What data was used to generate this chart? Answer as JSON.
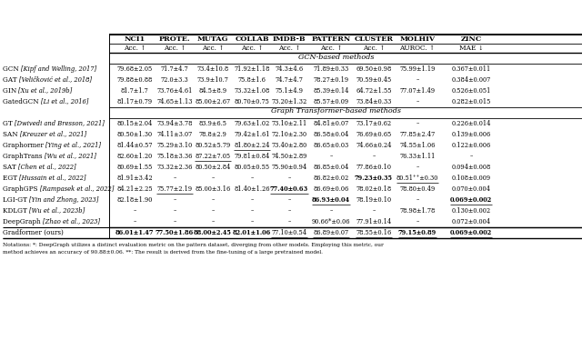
{
  "col_headers_line1": [
    "NCI1",
    "PROTE.",
    "MUTAG",
    "COLLAB",
    "IMDB-B",
    "PATTERN",
    "CLUSTER",
    "MOLHIV",
    "ZINC"
  ],
  "col_headers_line2": [
    "Acc. ↑",
    "Acc. ↑",
    "Acc. ↑",
    "Acc. ↑",
    "Acc. ↑",
    "Acc. ↑",
    "Acc. ↑",
    "AUROC. ↑",
    "MAE ↓"
  ],
  "gcn_section_title": "GCN-based methods",
  "gt_section_title": "Graph Transformer-based methods",
  "gcn_rows": [
    {
      "method_plain": "GCN",
      "method_ref": "[Kipf and Welling, 2017]",
      "values": [
        "79.68±2.05",
        "71.7±4.7",
        "73.4±10.8",
        "71.92±1.18",
        "74.3±4.6",
        "71.89±0.33",
        "69.50±0.98",
        "75.99±1.19",
        "0.367±0.011"
      ],
      "bold": [
        false,
        false,
        false,
        false,
        false,
        false,
        false,
        false,
        false
      ],
      "underline": [
        false,
        false,
        false,
        false,
        false,
        false,
        false,
        false,
        false
      ]
    },
    {
      "method_plain": "GAT",
      "method_ref": "[Veličković et al., 2018]",
      "values": [
        "79.88±0.88",
        "72.0±3.3",
        "73.9±10.7",
        "75.8±1.6",
        "74.7±4.7",
        "78.27±0.19",
        "70.59±0.45",
        "–",
        "0.384±0.007"
      ],
      "bold": [
        false,
        false,
        false,
        false,
        false,
        false,
        false,
        false,
        false
      ],
      "underline": [
        false,
        false,
        false,
        false,
        false,
        false,
        false,
        false,
        false
      ]
    },
    {
      "method_plain": "GIN",
      "method_ref": "[Xu et al., 2019b]",
      "values": [
        "81.7±1.7",
        "73.76±4.61",
        "84.5±8.9",
        "73.32±1.08",
        "75.1±4.9",
        "85.39±0.14",
        "64.72±1.55",
        "77.07±1.49",
        "0.526±0.051"
      ],
      "bold": [
        false,
        false,
        false,
        false,
        false,
        false,
        false,
        false,
        false
      ],
      "underline": [
        false,
        false,
        false,
        false,
        false,
        false,
        false,
        false,
        false
      ]
    },
    {
      "method_plain": "GatedGCN",
      "method_ref": "[Li et al., 2016]",
      "values": [
        "81.17±0.79",
        "74.65±1.13",
        "85.00±2.67",
        "80.70±0.75",
        "73.20±1.32",
        "85.57±0.09",
        "73.84±0.33",
        "–",
        "0.282±0.015"
      ],
      "bold": [
        false,
        false,
        false,
        false,
        false,
        false,
        false,
        false,
        false
      ],
      "underline": [
        false,
        false,
        false,
        false,
        false,
        false,
        false,
        false,
        false
      ]
    }
  ],
  "gt_rows": [
    {
      "method_plain": "GT",
      "method_ref": "[Dwivedi and Bresson, 2021]",
      "values": [
        "80.15±2.04",
        "73.94±3.78",
        "83.9±6.5",
        "79.63±1.02",
        "73.10±2.11",
        "84.81±0.07",
        "73.17±0.62",
        "–",
        "0.226±0.014"
      ],
      "bold": [
        false,
        false,
        false,
        false,
        false,
        false,
        false,
        false,
        false
      ],
      "underline": [
        false,
        false,
        false,
        false,
        false,
        false,
        false,
        false,
        false
      ]
    },
    {
      "method_plain": "SAN",
      "method_ref": "[Kreuzer et al., 2021]",
      "values": [
        "80.50±1.30",
        "74.11±3.07",
        "78.8±2.9",
        "79.42±1.61",
        "72.10±2.30",
        "86.58±0.04",
        "76.69±0.65",
        "77.85±2.47",
        "0.139±0.006"
      ],
      "bold": [
        false,
        false,
        false,
        false,
        false,
        false,
        false,
        false,
        false
      ],
      "underline": [
        false,
        false,
        false,
        false,
        false,
        false,
        false,
        false,
        false
      ]
    },
    {
      "method_plain": "Graphormer",
      "method_ref": "[Ying et al., 2021]",
      "values": [
        "81.44±0.57",
        "75.29±3.10",
        "80.52±5.79",
        "81.80±2.24",
        "73.40±2.80",
        "86.65±0.03",
        "74.66±0.24",
        "74.55±1.06",
        "0.122±0.006"
      ],
      "bold": [
        false,
        false,
        false,
        false,
        false,
        false,
        false,
        false,
        false
      ],
      "underline": [
        false,
        false,
        false,
        true,
        false,
        false,
        false,
        false,
        false
      ]
    },
    {
      "method_plain": "GraphTrans",
      "method_ref": "[Wu et al., 2021]",
      "values": [
        "82.60±1.20",
        "75.18±3.36",
        "87.22±7.05",
        "79.81±0.84",
        "74.50±2.89",
        "–",
        "–",
        "76.33±1.11",
        "–"
      ],
      "bold": [
        false,
        false,
        false,
        false,
        false,
        false,
        false,
        false,
        false
      ],
      "underline": [
        false,
        false,
        true,
        false,
        false,
        false,
        false,
        false,
        false
      ]
    },
    {
      "method_plain": "SAT",
      "method_ref": "[Chen et al., 2022]",
      "values": [
        "80.69±1.55",
        "73.32±2.36",
        "80.50±2.84",
        "80.05±0.55",
        "75.90±0.94",
        "86.85±0.04",
        "77.86±0.10",
        "–",
        "0.094±0.008"
      ],
      "bold": [
        false,
        false,
        false,
        false,
        false,
        false,
        false,
        false,
        false
      ],
      "underline": [
        false,
        false,
        false,
        false,
        false,
        false,
        false,
        false,
        false
      ]
    },
    {
      "method_plain": "EGT",
      "method_ref": "[Hussain et al., 2022]",
      "values": [
        "81.91±3.42",
        "–",
        "–",
        "–",
        "–",
        "86.82±0.02",
        "79.23±0.35",
        "80.51⁺⁺±0.30",
        "0.108±0.009"
      ],
      "bold": [
        false,
        false,
        false,
        false,
        false,
        false,
        true,
        false,
        false
      ],
      "underline": [
        false,
        false,
        false,
        false,
        false,
        false,
        false,
        true,
        false
      ]
    },
    {
      "method_plain": "GraphGPS",
      "method_ref": "[Rampasek et al., 2022]",
      "values": [
        "84.21±2.25",
        "75.77±2.19",
        "85.00±3.16",
        "81.40±1.26",
        "77.40±0.63",
        "86.69±0.06",
        "78.02±0.18",
        "78.80±0.49",
        "0.070±0.004"
      ],
      "bold": [
        false,
        false,
        false,
        false,
        true,
        false,
        false,
        false,
        false
      ],
      "underline": [
        false,
        true,
        false,
        false,
        true,
        false,
        false,
        false,
        false
      ]
    },
    {
      "method_plain": "LGI-GT",
      "method_ref": "[Yin and Zhong, 2023]",
      "values": [
        "82.18±1.90",
        "–",
        "–",
        "–",
        "–",
        "86.93±0.04",
        "78.19±0.10",
        "–",
        "0.069±0.002"
      ],
      "bold": [
        false,
        false,
        false,
        false,
        false,
        true,
        false,
        false,
        true
      ],
      "underline": [
        false,
        false,
        false,
        false,
        false,
        true,
        false,
        false,
        true
      ]
    },
    {
      "method_plain": "KDLGT",
      "method_ref": "[Wu et al., 2023b]",
      "values": [
        "–",
        "–",
        "–",
        "–",
        "–",
        "–",
        "–",
        "78.98±1.78",
        "0.130±0.002"
      ],
      "bold": [
        false,
        false,
        false,
        false,
        false,
        false,
        false,
        false,
        false
      ],
      "underline": [
        false,
        false,
        false,
        false,
        false,
        false,
        false,
        false,
        false
      ]
    },
    {
      "method_plain": "DeepGraph",
      "method_ref": "[Zhao et al., 2023]",
      "values": [
        "–",
        "–",
        "–",
        "–",
        "–",
        "90.66*±0.06",
        "77.91±0.14",
        "–",
        "0.072±0.004"
      ],
      "bold": [
        false,
        false,
        false,
        false,
        false,
        false,
        false,
        false,
        false
      ],
      "underline": [
        false,
        false,
        false,
        false,
        false,
        false,
        false,
        false,
        false
      ]
    }
  ],
  "gradformer_row": {
    "method_plain": "Gradformer (ours)",
    "method_ref": "",
    "values": [
      "86.01±1.47",
      "77.50±1.86",
      "88.00±2.45",
      "82.01±1.06",
      "77.10±0.54",
      "86.89±0.07",
      "78.55±0.16",
      "79.15±0.89",
      "0.069±0.002"
    ],
    "bold": [
      true,
      true,
      true,
      true,
      false,
      false,
      false,
      true,
      true
    ],
    "underline": [
      false,
      false,
      false,
      false,
      true,
      true,
      true,
      true,
      true
    ]
  },
  "footnote_line1": "Notations: *: DeepGraph utilizes a distinct evaluation metric on the pattern dataset, diverging from other models. Employing this metric, our",
  "footnote_line2": "method achieves an accuracy of 90.88±0.06. **: The result is derived from the fine-tuning of a large pretrained model."
}
